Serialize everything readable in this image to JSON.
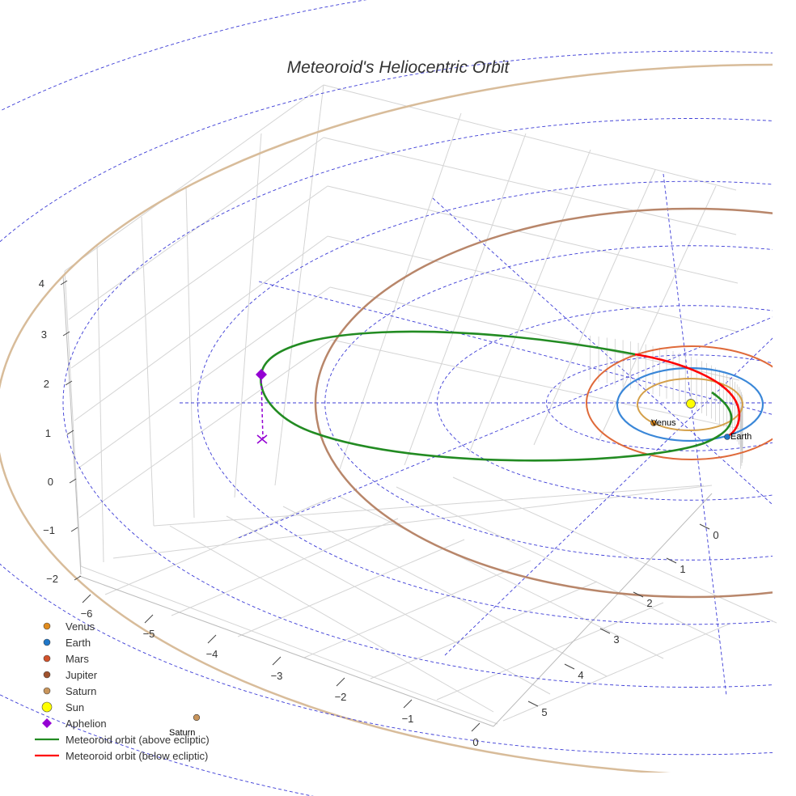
{
  "chart_data": {
    "type": "scatter",
    "title": "Meteoroid's Heliocentric Orbit",
    "projection": "3d-perspective",
    "grid": true,
    "legend_position": "bottom-left",
    "axes": {
      "x": {
        "ticks": [
          "−6",
          "−5",
          "−4",
          "−3",
          "−2",
          "−1",
          "0"
        ],
        "range": [
          -6.3,
          0.2
        ]
      },
      "y": {
        "ticks": [
          "0",
          "1",
          "2",
          "3",
          "4",
          "5"
        ],
        "range": [
          -0.5,
          5.5
        ]
      },
      "z": {
        "ticks": [
          "−2",
          "−1",
          "0",
          "1",
          "2",
          "3",
          "4"
        ],
        "range": [
          -2,
          4
        ]
      }
    },
    "series": [
      {
        "name": "Venus",
        "kind": "marker",
        "color": "#e08b1e",
        "label": "Venus"
      },
      {
        "name": "Earth",
        "kind": "marker",
        "color": "#1f77c9",
        "label": "Earth"
      },
      {
        "name": "Mars",
        "kind": "marker",
        "color": "#d2522b"
      },
      {
        "name": "Jupiter",
        "kind": "marker",
        "color": "#a0522d"
      },
      {
        "name": "Saturn",
        "kind": "marker",
        "color": "#c9955b",
        "label": "Saturn"
      },
      {
        "name": "Sun",
        "kind": "marker",
        "color": "#ffff00"
      },
      {
        "name": "Aphelion",
        "kind": "diamond",
        "color": "#9400d3"
      },
      {
        "name": "Meteoroid orbit (above ecliptic)",
        "kind": "line",
        "color": "#228b22"
      },
      {
        "name": "Meteoroid orbit (below ecliptic)",
        "kind": "line",
        "color": "#ff0000"
      }
    ],
    "orbit_colors": {
      "venus": "#d4a04a",
      "earth": "#3a87d8",
      "mars": "#df6a3a",
      "jupiter": "#b8866a",
      "saturn": "#d8bc9a",
      "reference_grid": "#3b3bd6"
    }
  }
}
